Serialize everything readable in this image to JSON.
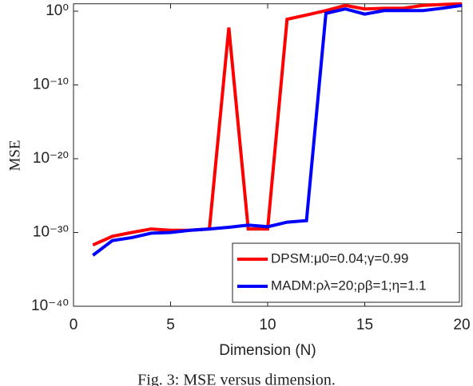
{
  "chart_data": {
    "type": "line",
    "xlabel": "Dimension (N)",
    "ylabel": "MSE",
    "x": [
      1,
      2,
      3,
      4,
      5,
      6,
      7,
      8,
      9,
      10,
      11,
      12,
      13,
      14,
      15,
      16,
      17,
      18,
      19,
      20
    ],
    "series": [
      {
        "name": "DPSM:μ0=0.04;γ=0.99",
        "color": "#ff0000",
        "values": [
          2e-32,
          3e-31,
          1e-30,
          3e-30,
          2e-30,
          2e-30,
          3e-30,
          0.006,
          3e-30,
          3e-30,
          0.08,
          0.3,
          1.2,
          6,
          2,
          2.5,
          2.5,
          6,
          8,
          10
        ]
      },
      {
        "name": "MADM:ρλ=20;ρβ=1;η=1.1",
        "color": "#0000ff",
        "values": [
          8e-34,
          8e-32,
          2e-31,
          8e-31,
          1e-30,
          2e-30,
          3e-30,
          5e-30,
          1e-29,
          6e-30,
          2.5e-29,
          4e-29,
          0.5,
          2,
          0.4,
          1.2,
          1.2,
          1.2,
          2.5,
          6
        ]
      }
    ],
    "xlim": [
      0,
      20
    ],
    "xticks": [
      0,
      5,
      10,
      15,
      20
    ],
    "ylim": [
      1e-40,
      10
    ],
    "ylog": true,
    "yticks": [
      {
        "value": 1e-40,
        "label": "10⁻⁴⁰"
      },
      {
        "value": 1e-30,
        "label": "10⁻³⁰"
      },
      {
        "value": 1e-20,
        "label": "10⁻²⁰"
      },
      {
        "value": 1e-10,
        "label": "10⁻¹⁰"
      },
      {
        "value": 1,
        "label": "10⁰"
      }
    ],
    "legend": "lower right"
  },
  "caption": "Fig. 3: MSE versus dimension."
}
